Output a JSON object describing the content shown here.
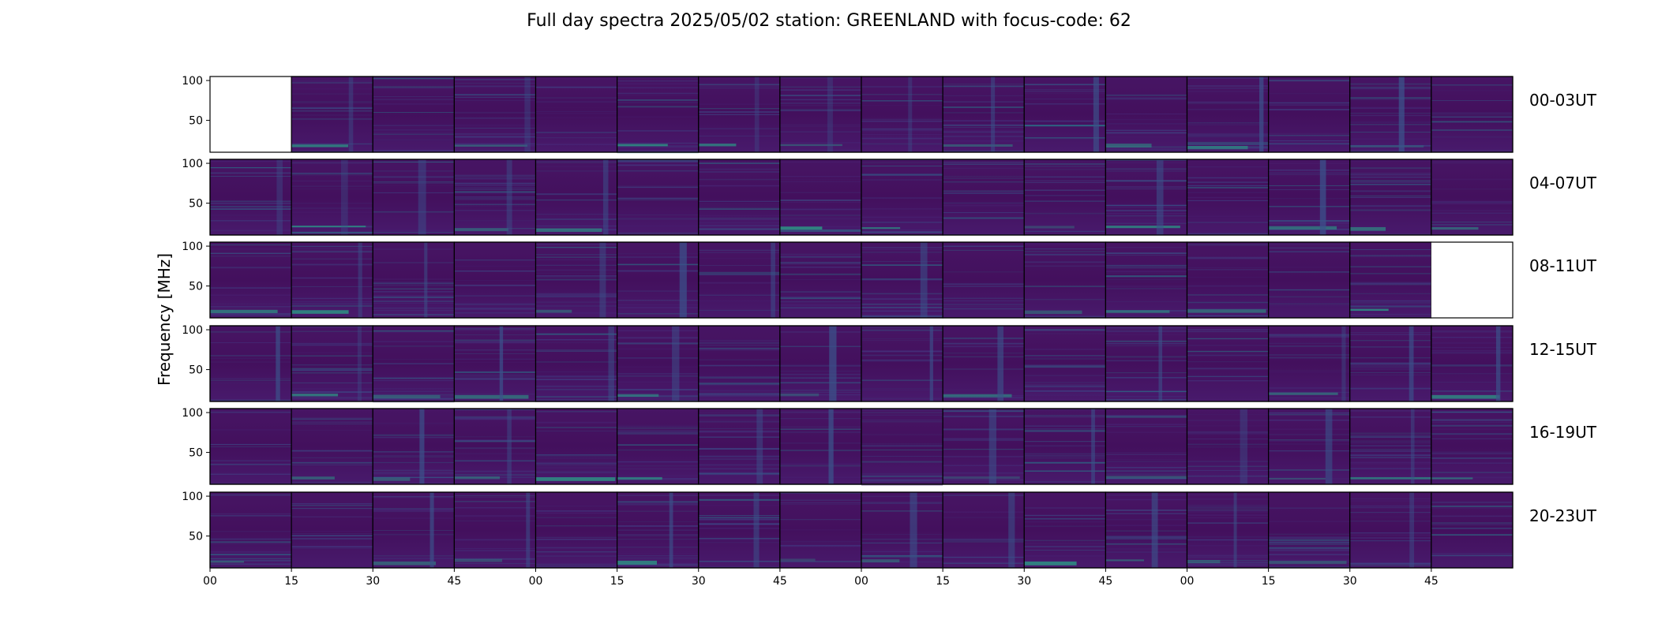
{
  "title": "Full day spectra 2025/05/02 station: GREENLAND with focus-code: 62",
  "colors": {
    "background": "#440154",
    "panel_base": "#45105f",
    "bright": "#2a9c86",
    "medium": "#3b528b",
    "frame": "#000000",
    "empty_panel": "#ffffff"
  },
  "chart_data": {
    "type": "heatmap",
    "title": "Full day spectra 2025/05/02 station: GREENLAND with focus-code: 62",
    "ylabel": "Frequency [MHz]",
    "xlabel": "",
    "ylim": [
      10,
      105
    ],
    "y_ticks": [
      "100",
      "50"
    ],
    "x_tick_labels": [
      "00",
      "15",
      "30",
      "45",
      "00",
      "15",
      "30",
      "45",
      "00",
      "15",
      "30",
      "45",
      "00",
      "15",
      "30",
      "45"
    ],
    "rows": [
      {
        "label": "00-03UT",
        "empty_panels": [
          0
        ]
      },
      {
        "label": "04-07UT",
        "empty_panels": []
      },
      {
        "label": "08-11UT",
        "empty_panels": [
          15
        ]
      },
      {
        "label": "12-15UT",
        "empty_panels": []
      },
      {
        "label": "16-19UT",
        "empty_panels": []
      },
      {
        "label": "20-23UT",
        "empty_panels": []
      }
    ],
    "panels_per_row": 16,
    "colormap": "viridis",
    "grid": false
  }
}
